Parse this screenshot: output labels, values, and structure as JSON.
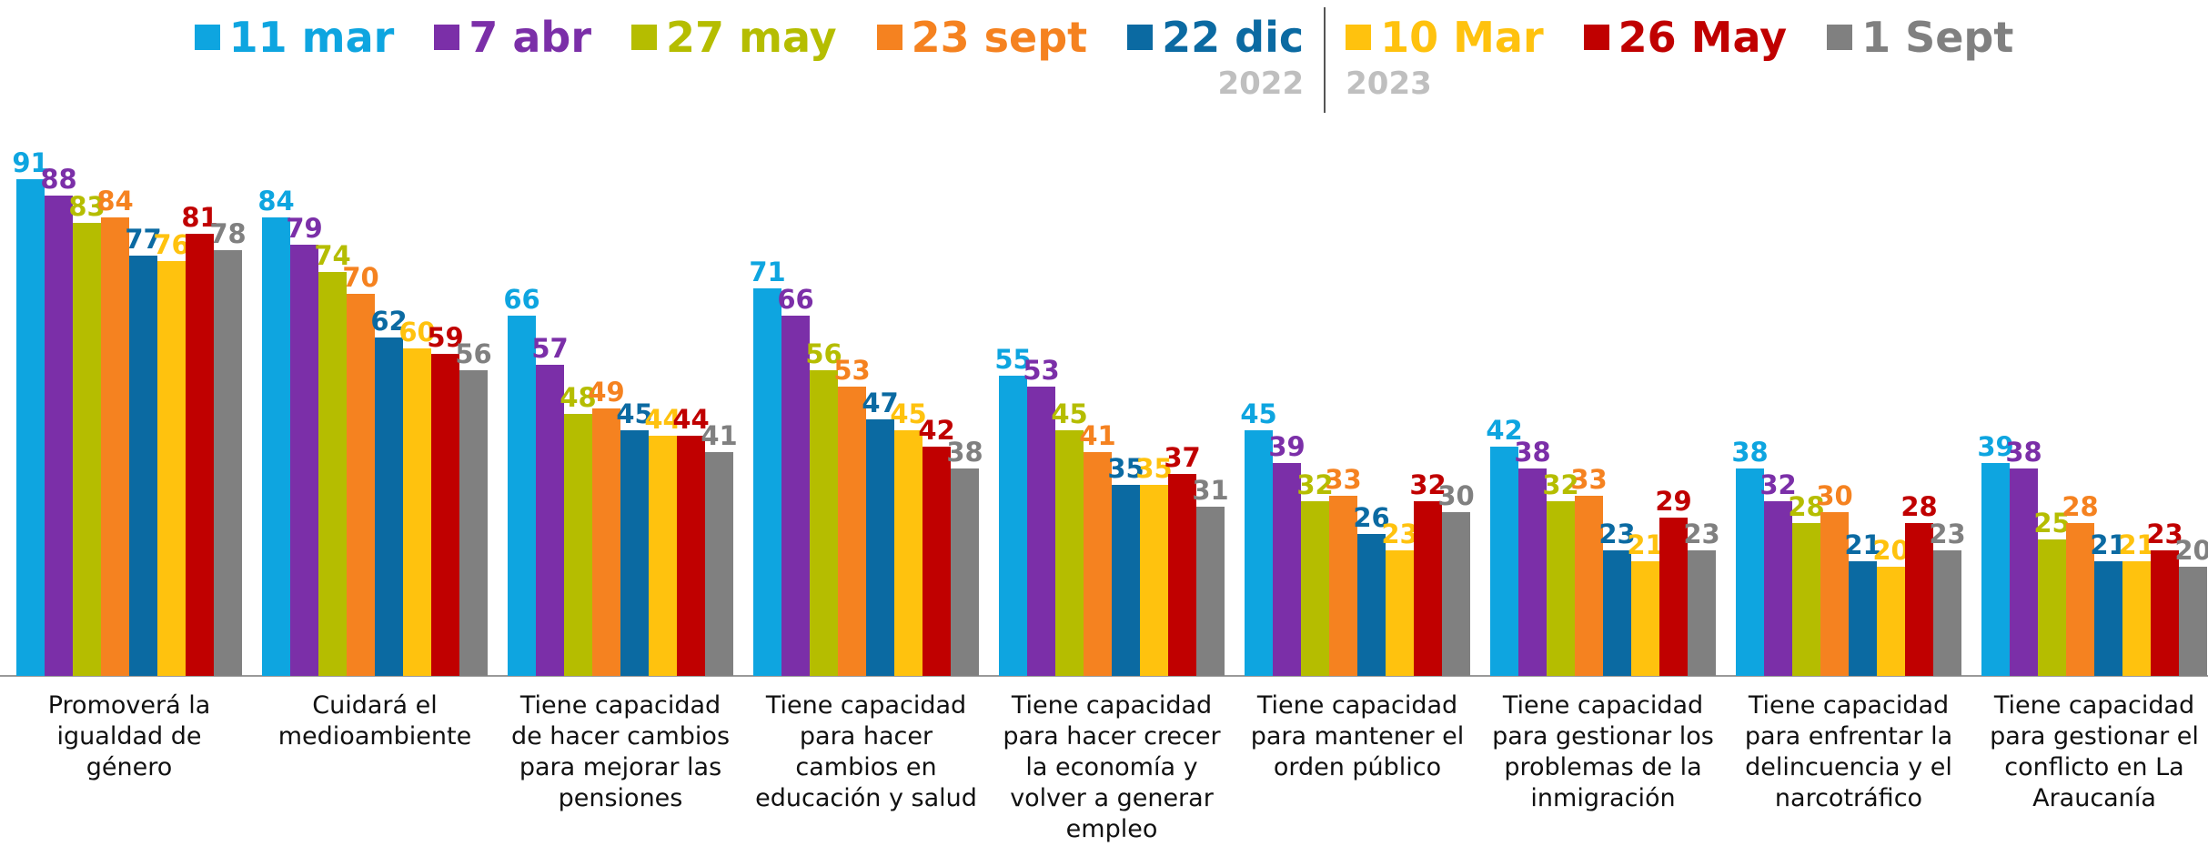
{
  "chart_data": {
    "type": "bar",
    "categories": [
      "Promoverá la\nigualdad de\ngénero",
      "Cuidará el\nmedioambiente",
      "Tiene capacidad\nde hacer cambios\npara mejorar las\npensiones",
      "Tiene capacidad\npara hacer\ncambios en\neducación y salud",
      "Tiene capacidad\npara hacer crecer\nla economía y\nvolver a generar\nempleo",
      "Tiene capacidad\npara mantener el\norden público",
      "Tiene capacidad\npara gestionar los\nproblemas de la\ninmigración",
      "Tiene capacidad\npara enfrentar la\ndelincuencia y el\nnarcotráfico",
      "Tiene capacidad\npara gestionar el\nconflicto en La\nAraucanía"
    ],
    "series": [
      {
        "name": "11 mar",
        "color": "#0ea5e0",
        "values": [
          91,
          84,
          66,
          71,
          55,
          45,
          42,
          38,
          39
        ]
      },
      {
        "name": "7 abr",
        "color": "#7b2fa8",
        "values": [
          88,
          79,
          57,
          66,
          53,
          39,
          38,
          32,
          38
        ]
      },
      {
        "name": "27 may",
        "color": "#b5bd00",
        "values": [
          83,
          74,
          48,
          56,
          45,
          32,
          32,
          28,
          25
        ]
      },
      {
        "name": "23 sept",
        "color": "#f58220",
        "values": [
          84,
          70,
          49,
          53,
          41,
          33,
          33,
          30,
          28
        ]
      },
      {
        "name": "22 dic",
        "color": "#0b6aa2",
        "values": [
          77,
          62,
          45,
          47,
          35,
          26,
          23,
          21,
          21
        ]
      },
      {
        "name": "10 Mar",
        "color": "#ffc20e",
        "values": [
          76,
          60,
          44,
          45,
          35,
          23,
          21,
          20,
          21
        ]
      },
      {
        "name": "26 May",
        "color": "#c00000",
        "values": [
          81,
          59,
          44,
          42,
          37,
          32,
          29,
          28,
          23
        ]
      },
      {
        "name": "1 Sept",
        "color": "#808080",
        "values": [
          78,
          56,
          41,
          38,
          31,
          30,
          23,
          23,
          20
        ]
      }
    ],
    "legend_years": [
      "2022",
      "2023"
    ],
    "ylim": [
      0,
      100
    ]
  }
}
